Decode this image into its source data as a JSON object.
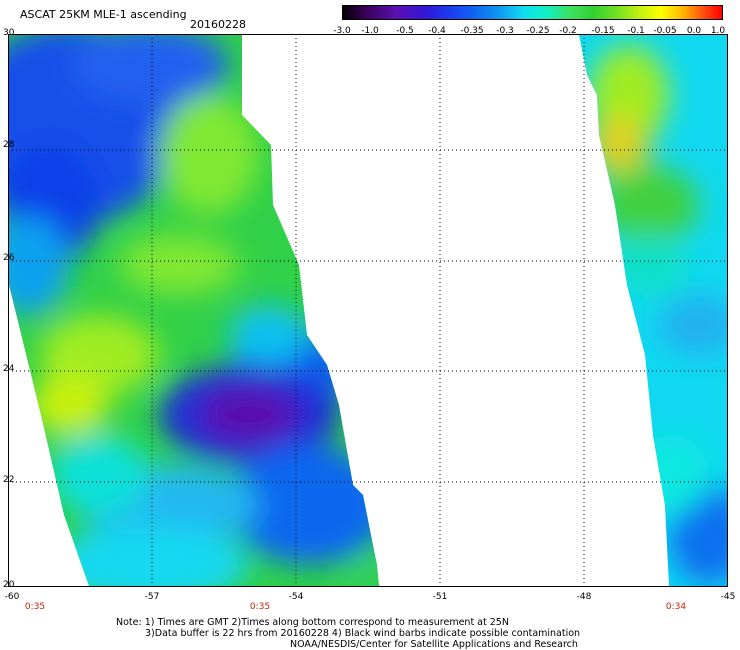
{
  "header": {
    "title": "ASCAT 25KM MLE-1 ascending",
    "date": "20160228"
  },
  "colorbar": {
    "tick_labels": [
      "-3.0",
      "-1.0",
      "-0.5",
      "-0.4",
      "-0.35",
      "-0.3",
      "-0.25",
      "-0.2",
      "-0.15",
      "-0.1",
      "-0.05",
      "0.0",
      "1.0"
    ]
  },
  "axes": {
    "y_labels": [
      "30",
      "28",
      "26",
      "24",
      "22",
      "20"
    ],
    "x_labels": [
      "-60",
      "-57",
      "-54",
      "-51",
      "-48",
      "-45"
    ],
    "time_labels": [
      "0:35",
      "0:35",
      "0:34"
    ]
  },
  "map": {
    "lat_range": [
      20,
      30
    ],
    "lon_range": [
      -60,
      -45
    ]
  },
  "notes": {
    "line1": "Note: 1) Times are GMT 2)Times along bottom correspond to measurement at 25N",
    "line2": "3)Data buffer is 22 hrs from 20160228 4) Black wind barbs indicate possible contamination",
    "line3": "NOAA/NESDIS/Center for Satellite Applications and Research"
  }
}
